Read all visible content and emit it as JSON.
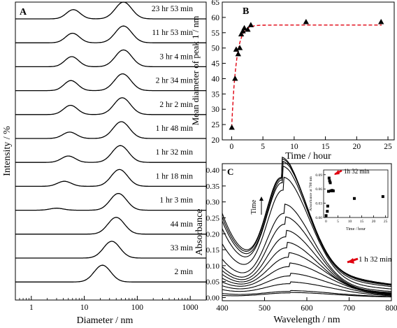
{
  "chart_data": [
    {
      "panel": "A",
      "type": "line",
      "xlabel": "Diameter / nm",
      "ylabel": "Intensity / %",
      "x_scale": "log",
      "xlim": [
        0.5,
        2000
      ],
      "x_ticks": [
        1,
        10,
        100,
        1000
      ],
      "x_tick_labels": [
        "1",
        "10",
        "100",
        "1000"
      ],
      "series": [
        {
          "name": "23 hr 53 min",
          "peaks": [
            {
              "center": 6.2,
              "height": 0.55
            },
            {
              "center": 55,
              "height": 1.0
            }
          ]
        },
        {
          "name": "11 hr 53 min",
          "peaks": [
            {
              "center": 6.0,
              "height": 0.57
            },
            {
              "center": 55,
              "height": 1.0
            }
          ]
        },
        {
          "name": "3 hr 4 min",
          "peaks": [
            {
              "center": 5.8,
              "height": 0.6
            },
            {
              "center": 55,
              "height": 1.0
            }
          ]
        },
        {
          "name": "2 hr 34 min",
          "peaks": [
            {
              "center": 5.6,
              "height": 0.6
            },
            {
              "center": 53,
              "height": 1.0
            }
          ]
        },
        {
          "name": "2 hr 2 min",
          "peaks": [
            {
              "center": 5.5,
              "height": 0.55
            },
            {
              "center": 52,
              "height": 1.0
            }
          ]
        },
        {
          "name": "1 hr 48 min",
          "peaks": [
            {
              "center": 5.3,
              "height": 0.38
            },
            {
              "center": 50,
              "height": 1.0
            }
          ]
        },
        {
          "name": "1 hr 32 min",
          "peaks": [
            {
              "center": 5.0,
              "height": 0.38
            },
            {
              "center": 48,
              "height": 1.0
            }
          ]
        },
        {
          "name": "1 hr 18 min",
          "peaks": [
            {
              "center": 4.2,
              "height": 0.3
            },
            {
              "center": 46,
              "height": 1.0
            }
          ]
        },
        {
          "name": "1 hr 3 min",
          "peaks": [
            {
              "center": 3.0,
              "height": 0.12
            },
            {
              "center": 44,
              "height": 1.0
            }
          ]
        },
        {
          "name": "44 min",
          "peaks": [
            {
              "center": 40,
              "height": 1.0
            }
          ]
        },
        {
          "name": "33 min",
          "peaks": [
            {
              "center": 33,
              "height": 1.0
            }
          ]
        },
        {
          "name": "2 min",
          "peaks": [
            {
              "center": 22,
              "height": 1.0
            }
          ]
        }
      ]
    },
    {
      "panel": "B",
      "type": "scatter",
      "xlabel": "Time / hour",
      "ylabel": "Mean diameter of peak 1 / nm",
      "xlim": [
        -1.5,
        26
      ],
      "ylim": [
        20,
        65
      ],
      "x_ticks": [
        0,
        5,
        10,
        15,
        20,
        25
      ],
      "y_ticks": [
        20,
        25,
        30,
        35,
        40,
        45,
        50,
        55,
        60,
        65
      ],
      "points": [
        {
          "x": 0.03,
          "y": 24
        },
        {
          "x": 0.55,
          "y": 40
        },
        {
          "x": 0.73,
          "y": 49.5
        },
        {
          "x": 1.05,
          "y": 48
        },
        {
          "x": 1.3,
          "y": 50
        },
        {
          "x": 1.53,
          "y": 54.5
        },
        {
          "x": 1.8,
          "y": 55.5
        },
        {
          "x": 2.03,
          "y": 56.5
        },
        {
          "x": 2.57,
          "y": 56
        },
        {
          "x": 3.07,
          "y": 57.5
        },
        {
          "x": 11.9,
          "y": 58.5
        },
        {
          "x": 23.9,
          "y": 58.5
        }
      ],
      "fit_plateau": 57.5
    },
    {
      "panel": "C",
      "type": "line",
      "xlabel": "Wavelength / nm",
      "ylabel": "Absorbance",
      "xlim": [
        400,
        800
      ],
      "ylim": [
        -0.01,
        0.42
      ],
      "x_ticks": [
        400,
        500,
        600,
        700,
        800
      ],
      "y_ticks": [
        0.0,
        0.05,
        0.1,
        0.15,
        0.2,
        0.25,
        0.3,
        0.35,
        0.4
      ],
      "y_tick_labels": [
        "0.00",
        "0.05",
        "0.10",
        "0.15",
        "0.20",
        "0.25",
        "0.30",
        "0.35",
        "0.40"
      ],
      "arrow_label": "Time",
      "annotation": "1 h 32 min",
      "spectra": [
        {
          "peak_nm": 560,
          "peak": 0.015,
          "base": 0.005,
          "width": 90
        },
        {
          "peak_nm": 560,
          "peak": 0.02,
          "base": 0.01,
          "width": 90
        },
        {
          "peak_nm": 560,
          "peak": 0.045,
          "base": 0.02,
          "width": 85
        },
        {
          "peak_nm": 560,
          "peak": 0.07,
          "base": 0.03,
          "width": 80
        },
        {
          "peak_nm": 558,
          "peak": 0.1,
          "base": 0.04,
          "width": 75
        },
        {
          "peak_nm": 556,
          "peak": 0.13,
          "base": 0.05,
          "width": 70
        },
        {
          "peak_nm": 552,
          "peak": 0.16,
          "base": 0.06,
          "width": 65
        },
        {
          "peak_nm": 550,
          "peak": 0.195,
          "base": 0.07,
          "width": 62
        },
        {
          "peak_nm": 548,
          "peak": 0.235,
          "base": 0.08,
          "width": 60
        },
        {
          "peak_nm": 546,
          "peak": 0.27,
          "base": 0.1,
          "width": 58
        },
        {
          "peak_nm": 544,
          "peak": 0.345,
          "base": 0.14,
          "width": 55
        },
        {
          "peak_nm": 542,
          "peak": 0.37,
          "base": 0.18,
          "width": 53
        },
        {
          "peak_nm": 542,
          "peak": 0.38,
          "base": 0.2,
          "width": 52
        },
        {
          "peak_nm": 541,
          "peak": 0.385,
          "base": 0.21,
          "width": 52
        },
        {
          "peak_nm": 540,
          "peak": 0.388,
          "base": 0.22,
          "width": 51
        }
      ],
      "inset": {
        "xlabel": "Time / hour",
        "ylabel": "Absorbance at 700 nm",
        "xlim": [
          -1,
          26
        ],
        "ylim": [
          0.0,
          0.1
        ],
        "x_ticks": [
          0,
          5,
          10,
          15,
          20,
          25
        ],
        "y_ticks": [
          0.0,
          0.03,
          0.06,
          0.09
        ],
        "y_tick_labels": [
          "0.00",
          "0.03",
          "0.06",
          "0.09"
        ],
        "annotation": "1h 32 min",
        "points": [
          {
            "x": 0.03,
            "y": 0.004
          },
          {
            "x": 0.55,
            "y": 0.013
          },
          {
            "x": 0.73,
            "y": 0.024
          },
          {
            "x": 1.05,
            "y": 0.055
          },
          {
            "x": 1.3,
            "y": 0.083
          },
          {
            "x": 1.53,
            "y": 0.077
          },
          {
            "x": 1.8,
            "y": 0.073
          },
          {
            "x": 2.03,
            "y": 0.056
          },
          {
            "x": 2.57,
            "y": 0.057
          },
          {
            "x": 3.07,
            "y": 0.056
          },
          {
            "x": 11.9,
            "y": 0.04
          },
          {
            "x": 23.9,
            "y": 0.044
          }
        ]
      }
    }
  ]
}
